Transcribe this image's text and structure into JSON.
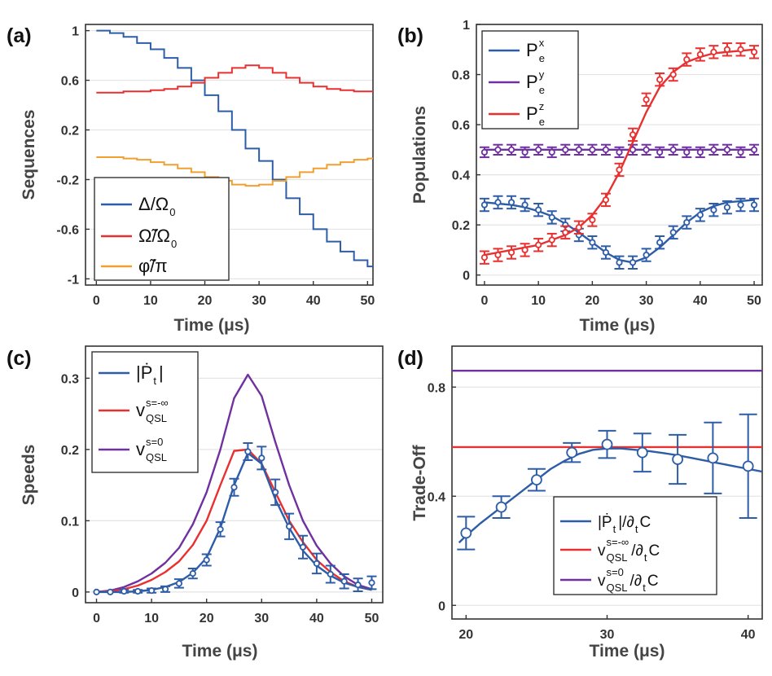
{
  "colors": {
    "blue": "#2e5da8",
    "red": "#e83030",
    "purple": "#7030a0",
    "orange": "#f0a030",
    "grid": "#e4e4e4",
    "axis": "#333333"
  },
  "chart_data": [
    {
      "panel": "(a)",
      "type": "line",
      "xlabel": "Time (μs)",
      "ylabel": "Sequences",
      "xlim": [
        -2,
        51
      ],
      "ylim": [
        -1.05,
        1.05
      ],
      "xticks": [
        0,
        10,
        20,
        30,
        40,
        50
      ],
      "yticks": [
        -1,
        -0.6,
        -0.2,
        0.2,
        0.6,
        1
      ],
      "ytick_labels": [
        "-1",
        "-0.6",
        "-0.2",
        "0.2",
        "0.6",
        "1"
      ],
      "legend": [
        {
          "main": "Δ/Ω",
          "sub": "0",
          "color": "blue"
        },
        {
          "main": "Ω̃/Ω",
          "sub": "0",
          "color": "red"
        },
        {
          "main": "φ̃/π",
          "sub": "",
          "color": "orange"
        }
      ],
      "series": [
        {
          "name": "Δ/Ω0",
          "color": "blue",
          "style": "step",
          "t0": 0,
          "dt": 2.5,
          "values": [
            1.0,
            0.98,
            0.95,
            0.9,
            0.85,
            0.78,
            0.7,
            0.6,
            0.48,
            0.35,
            0.2,
            0.05,
            -0.05,
            -0.2,
            -0.35,
            -0.48,
            -0.6,
            -0.7,
            -0.78,
            -0.85,
            -0.9,
            -0.95,
            -0.98,
            -1.0
          ]
        },
        {
          "name": "Ω̃/Ω0",
          "color": "red",
          "style": "step",
          "t0": 0,
          "dt": 2.5,
          "values": [
            0.5,
            0.5,
            0.51,
            0.51,
            0.52,
            0.53,
            0.55,
            0.58,
            0.62,
            0.66,
            0.7,
            0.72,
            0.7,
            0.66,
            0.62,
            0.58,
            0.55,
            0.53,
            0.52,
            0.51,
            0.51,
            0.5,
            0.5,
            0.5
          ]
        },
        {
          "name": "φ̃/π",
          "color": "orange",
          "style": "step",
          "t0": 0,
          "dt": 2.5,
          "values": [
            -0.02,
            -0.02,
            -0.03,
            -0.04,
            -0.06,
            -0.08,
            -0.11,
            -0.14,
            -0.18,
            -0.21,
            -0.24,
            -0.25,
            -0.24,
            -0.21,
            -0.18,
            -0.14,
            -0.11,
            -0.08,
            -0.06,
            -0.04,
            -0.03,
            -0.02,
            -0.02,
            -0.02
          ]
        }
      ]
    },
    {
      "panel": "(b)",
      "type": "line",
      "xlabel": "Time (μs)",
      "ylabel": "Populations",
      "xlim": [
        -1.5,
        51.5
      ],
      "ylim": [
        -0.04,
        1.0
      ],
      "xticks": [
        0,
        10,
        20,
        30,
        40,
        50
      ],
      "yticks": [
        0,
        0.2,
        0.4,
        0.6,
        0.8,
        1
      ],
      "ytick_labels": [
        "0",
        "0.2",
        "0.4",
        "0.6",
        "0.8",
        "1"
      ],
      "legend": [
        {
          "main": "P",
          "sup": "x",
          "sub": "e",
          "color": "blue"
        },
        {
          "main": "P",
          "sup": "y",
          "sub": "e",
          "color": "purple"
        },
        {
          "main": "P",
          "sup": "z",
          "sub": "e",
          "color": "red"
        }
      ],
      "series": [
        {
          "name": "Pe^x",
          "color": "blue",
          "line_x": [
            0,
            2.5,
            5,
            7.5,
            10,
            12.5,
            15,
            17.5,
            20,
            22.5,
            25,
            27.5,
            30,
            32.5,
            35,
            37.5,
            40,
            42.5,
            45,
            47.5,
            50
          ],
          "line_y": [
            0.29,
            0.285,
            0.28,
            0.27,
            0.255,
            0.235,
            0.205,
            0.17,
            0.13,
            0.09,
            0.06,
            0.05,
            0.07,
            0.11,
            0.16,
            0.21,
            0.25,
            0.275,
            0.29,
            0.295,
            0.3
          ],
          "points_x": [
            0,
            2.5,
            5,
            7.5,
            10,
            12.5,
            15,
            17.5,
            20,
            22.5,
            25,
            27.5,
            30,
            32.5,
            35,
            37.5,
            40,
            42.5,
            45,
            47.5,
            50
          ],
          "points_y": [
            0.28,
            0.29,
            0.29,
            0.28,
            0.26,
            0.23,
            0.2,
            0.16,
            0.13,
            0.09,
            0.05,
            0.05,
            0.08,
            0.13,
            0.17,
            0.21,
            0.24,
            0.26,
            0.27,
            0.28,
            0.28
          ],
          "err": 0.025
        },
        {
          "name": "Pe^y",
          "color": "purple",
          "line_x": [
            0,
            50
          ],
          "line_y": [
            0.5,
            0.5
          ],
          "points_x": [
            0,
            2.5,
            5,
            7.5,
            10,
            12.5,
            15,
            17.5,
            20,
            22.5,
            25,
            27.5,
            30,
            32.5,
            35,
            37.5,
            40,
            42.5,
            45,
            47.5,
            50
          ],
          "points_y": [
            0.49,
            0.5,
            0.5,
            0.49,
            0.5,
            0.49,
            0.5,
            0.5,
            0.5,
            0.5,
            0.49,
            0.5,
            0.5,
            0.49,
            0.5,
            0.49,
            0.49,
            0.5,
            0.5,
            0.49,
            0.5
          ],
          "err": 0.02
        },
        {
          "name": "Pe^z",
          "color": "red",
          "line_x": [
            0,
            2.5,
            5,
            7.5,
            10,
            12.5,
            15,
            17.5,
            20,
            22.5,
            25,
            27.5,
            30,
            32.5,
            35,
            37.5,
            40,
            42.5,
            45,
            47.5,
            50
          ],
          "line_y": [
            0.08,
            0.09,
            0.1,
            0.11,
            0.12,
            0.14,
            0.16,
            0.19,
            0.24,
            0.31,
            0.41,
            0.53,
            0.65,
            0.75,
            0.81,
            0.85,
            0.87,
            0.885,
            0.89,
            0.895,
            0.9
          ],
          "points_x": [
            0,
            2.5,
            5,
            7.5,
            10,
            12.5,
            15,
            17.5,
            20,
            22.5,
            25,
            27.5,
            30,
            32.5,
            35,
            37.5,
            40,
            42.5,
            45,
            47.5,
            50
          ],
          "points_y": [
            0.07,
            0.08,
            0.09,
            0.1,
            0.12,
            0.14,
            0.17,
            0.19,
            0.22,
            0.3,
            0.42,
            0.56,
            0.7,
            0.78,
            0.8,
            0.86,
            0.88,
            0.89,
            0.9,
            0.9,
            0.89
          ],
          "err": 0.025
        }
      ]
    },
    {
      "panel": "(c)",
      "type": "line",
      "xlabel": "Time (μs)",
      "ylabel": "Speeds",
      "xlim": [
        -2,
        52
      ],
      "ylim": [
        -0.015,
        0.345
      ],
      "xticks": [
        0,
        10,
        20,
        30,
        40,
        50
      ],
      "yticks": [
        0,
        0.1,
        0.2,
        0.3
      ],
      "ytick_labels": [
        "0",
        "0.1",
        "0.2",
        "0.3"
      ],
      "legend": [
        {
          "main": "|Ṗ",
          "sub": "t",
          "tail": "|",
          "color": "blue"
        },
        {
          "main": "v",
          "sup": "s=-∞",
          "sub": "QSL",
          "color": "red"
        },
        {
          "main": "v",
          "sup": "s=0",
          "sub": "QSL",
          "color": "purple"
        }
      ],
      "series": [
        {
          "name": "v_QSL s=0",
          "color": "purple",
          "line_x": [
            0,
            2.5,
            5,
            7.5,
            10,
            12.5,
            15,
            17.5,
            20,
            22.5,
            25,
            27.5,
            30,
            32.5,
            35,
            37.5,
            40,
            42.5,
            45,
            47.5,
            50
          ],
          "line_y": [
            0.0,
            0.002,
            0.007,
            0.015,
            0.026,
            0.041,
            0.062,
            0.095,
            0.14,
            0.2,
            0.272,
            0.305,
            0.275,
            0.21,
            0.15,
            0.1,
            0.065,
            0.04,
            0.022,
            0.01,
            0.004
          ]
        },
        {
          "name": "v_QSL s=-inf",
          "color": "red",
          "line_x": [
            0,
            2.5,
            5,
            7.5,
            10,
            12.5,
            15,
            17.5,
            20,
            22.5,
            25,
            27.5,
            30,
            32.5,
            35,
            37.5,
            40,
            42.5,
            45,
            47.5,
            50
          ],
          "line_y": [
            0.0,
            0.001,
            0.004,
            0.009,
            0.017,
            0.028,
            0.043,
            0.066,
            0.1,
            0.15,
            0.198,
            0.2,
            0.18,
            0.14,
            0.1,
            0.07,
            0.045,
            0.028,
            0.015,
            0.007,
            0.003
          ]
        },
        {
          "name": "|dPt/dt|",
          "color": "blue",
          "line_x": [
            0,
            2.5,
            5,
            7.5,
            10,
            12.5,
            15,
            17.5,
            20,
            22.5,
            25,
            27.5,
            30,
            32.5,
            35,
            37.5,
            40,
            42.5,
            45,
            47.5,
            50
          ],
          "line_y": [
            0.0,
            0.0,
            0.0,
            0.001,
            0.003,
            0.007,
            0.014,
            0.027,
            0.048,
            0.09,
            0.15,
            0.195,
            0.18,
            0.13,
            0.09,
            0.058,
            0.037,
            0.023,
            0.013,
            0.007,
            0.003
          ],
          "points_x": [
            0,
            2.5,
            5,
            7.5,
            10,
            12.5,
            15,
            17.5,
            20,
            22.5,
            25,
            27.5,
            30,
            32.5,
            35,
            37.5,
            40,
            42.5,
            45,
            47.5,
            50
          ],
          "points_y": [
            0.0,
            0.0,
            0.001,
            0.001,
            0.002,
            0.004,
            0.012,
            0.026,
            0.045,
            0.088,
            0.147,
            0.197,
            0.188,
            0.14,
            0.092,
            0.063,
            0.04,
            0.025,
            0.015,
            0.01,
            0.013
          ],
          "err": [
            0.0,
            0.0,
            0.002,
            0.002,
            0.003,
            0.004,
            0.006,
            0.007,
            0.008,
            0.01,
            0.012,
            0.012,
            0.016,
            0.018,
            0.018,
            0.016,
            0.014,
            0.012,
            0.01,
            0.009,
            0.009
          ]
        }
      ]
    },
    {
      "panel": "(d)",
      "type": "line",
      "xlabel": "Time (μs)",
      "ylabel": "Trade-Off",
      "xlim": [
        19,
        41
      ],
      "ylim": [
        -0.05,
        0.95
      ],
      "xticks": [
        20,
        30,
        40
      ],
      "yticks": [
        0,
        0.4,
        0.8
      ],
      "ytick_labels": [
        "0",
        "0.4",
        "0.8"
      ],
      "legend": [
        {
          "main": "|Ṗ",
          "sub": "t",
          "tail": "|/∂",
          "sub2": "t",
          "tail2": "C",
          "color": "blue"
        },
        {
          "main": "v",
          "sup": "s=-∞",
          "sub": "QSL",
          "tail": "/∂",
          "sub2": "t",
          "tail2": " C",
          "color": "red"
        },
        {
          "main": "v",
          "sup": "s=0",
          "sub": "QSL",
          "tail": "/∂",
          "sub2": "t",
          "tail2": " C",
          "color": "purple"
        }
      ],
      "series": [
        {
          "name": "v_QSL s=0 / dC",
          "color": "purple",
          "line_x": [
            19,
            41
          ],
          "line_y": [
            0.86,
            0.86
          ]
        },
        {
          "name": "v_QSL s=-inf / dC",
          "color": "red",
          "line_x": [
            19,
            41
          ],
          "line_y": [
            0.58,
            0.58
          ]
        },
        {
          "name": "|dPt|/dC",
          "color": "blue",
          "line_x": [
            19.5,
            20,
            21,
            22,
            23,
            24,
            25,
            26,
            27,
            28,
            29,
            30,
            31,
            32,
            33,
            34,
            35,
            36,
            37,
            38,
            39,
            40,
            41
          ],
          "line_y": [
            0.23,
            0.255,
            0.3,
            0.34,
            0.38,
            0.42,
            0.46,
            0.5,
            0.53,
            0.555,
            0.57,
            0.575,
            0.575,
            0.57,
            0.565,
            0.558,
            0.55,
            0.54,
            0.53,
            0.52,
            0.51,
            0.5,
            0.49
          ],
          "points_x": [
            20,
            22.5,
            25,
            27.5,
            30,
            32.5,
            35,
            37.5,
            40
          ],
          "points_y": [
            0.265,
            0.36,
            0.46,
            0.56,
            0.59,
            0.56,
            0.535,
            0.54,
            0.51
          ],
          "err": [
            0.06,
            0.04,
            0.04,
            0.035,
            0.05,
            0.07,
            0.09,
            0.13,
            0.19
          ]
        }
      ]
    }
  ]
}
